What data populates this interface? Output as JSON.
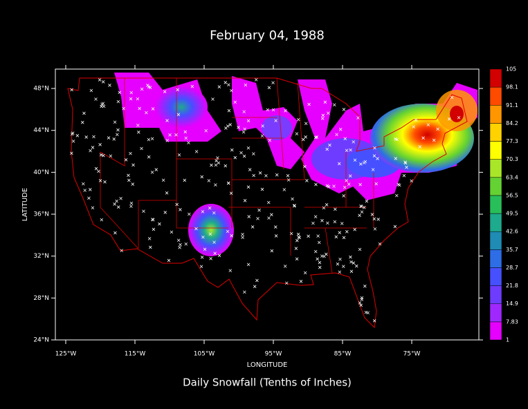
{
  "chart_data": {
    "type": "map",
    "title": "February 04, 1988",
    "subtitle": "Daily Snowfall (Tenths of Inches)",
    "x_label": "LONGITUDE",
    "y_label": "LATITUDE",
    "xlim": [
      -126.5,
      -65.3
    ],
    "ylim": [
      24,
      49.85
    ],
    "xticks": [
      {
        "value": -125,
        "label": "125°W"
      },
      {
        "value": -115,
        "label": "115°W"
      },
      {
        "value": -105,
        "label": "105°W"
      },
      {
        "value": -95,
        "label": "95°W"
      },
      {
        "value": -85,
        "label": "85°W"
      },
      {
        "value": -75,
        "label": "75°W"
      }
    ],
    "yticks": [
      {
        "value": 24,
        "label": "24°N"
      },
      {
        "value": 28,
        "label": "28°N"
      },
      {
        "value": 32,
        "label": "32°N"
      },
      {
        "value": 36,
        "label": "36°N"
      },
      {
        "value": 40,
        "label": "40°N"
      },
      {
        "value": 44,
        "label": "44°N"
      },
      {
        "value": 48,
        "label": "48°N"
      }
    ],
    "colorbar": {
      "labels": [
        "1",
        "7.83",
        "14.9",
        "21.8",
        "28.7",
        "35.7",
        "42.6",
        "49.5",
        "56.5",
        "63.4",
        "70.3",
        "77.3",
        "84.2",
        "91.1",
        "98.1",
        "105"
      ],
      "colors": [
        "#e600ff",
        "#a028ff",
        "#6e3cff",
        "#4650ff",
        "#2d6ee6",
        "#1e8cb4",
        "#1eaa8c",
        "#28be5a",
        "#64d232",
        "#aae628",
        "#ffff00",
        "#ffd200",
        "#ff9600",
        "#ff4b00",
        "#d20000"
      ]
    }
  }
}
